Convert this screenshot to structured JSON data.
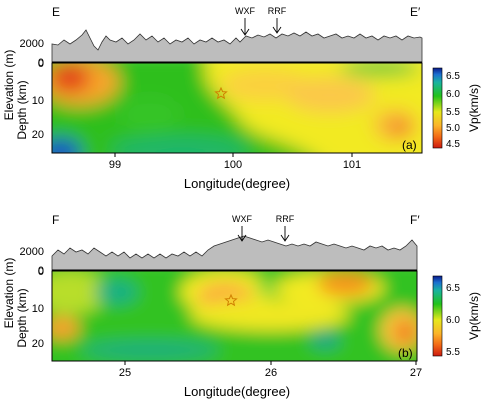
{
  "figure_type": "seismic velocity cross-sections",
  "colors": {
    "terrain_fill": "#bdbdbd",
    "star": "#d08000"
  },
  "section_a": {
    "left_end": "E",
    "right_end": "E′",
    "faults": [
      "WXF",
      "RRF"
    ],
    "elevation_axis": {
      "label": "Elevation (m)",
      "ticks": [
        "2000",
        "0"
      ]
    },
    "depth_axis": {
      "label": "Depth (km)",
      "ticks": [
        "0",
        "10",
        "20"
      ]
    },
    "x_axis": {
      "label": "Longitude(degree)",
      "ticks": [
        "99",
        "100",
        "101"
      ]
    },
    "panel_label": "(a)",
    "colorbar": {
      "label": "Vp(km/s)",
      "ticks": [
        "6.5",
        "6.0",
        "5.5",
        "5.0",
        "4.5"
      ]
    }
  },
  "section_b": {
    "left_end": "F",
    "right_end": "F′",
    "faults": [
      "WXF",
      "RRF"
    ],
    "elevation_axis": {
      "label": "Elevation (m)",
      "ticks": [
        "2000",
        "0"
      ]
    },
    "depth_axis": {
      "label": "Depth (km)",
      "ticks": [
        "0",
        "10",
        "20"
      ]
    },
    "x_axis": {
      "label": "Longitude(degree)",
      "ticks": [
        "25",
        "26",
        "27"
      ]
    },
    "panel_label": "(b)",
    "colorbar": {
      "label": "Vp(km/s)",
      "ticks": [
        "6.5",
        "6.0",
        "5.5"
      ]
    }
  }
}
